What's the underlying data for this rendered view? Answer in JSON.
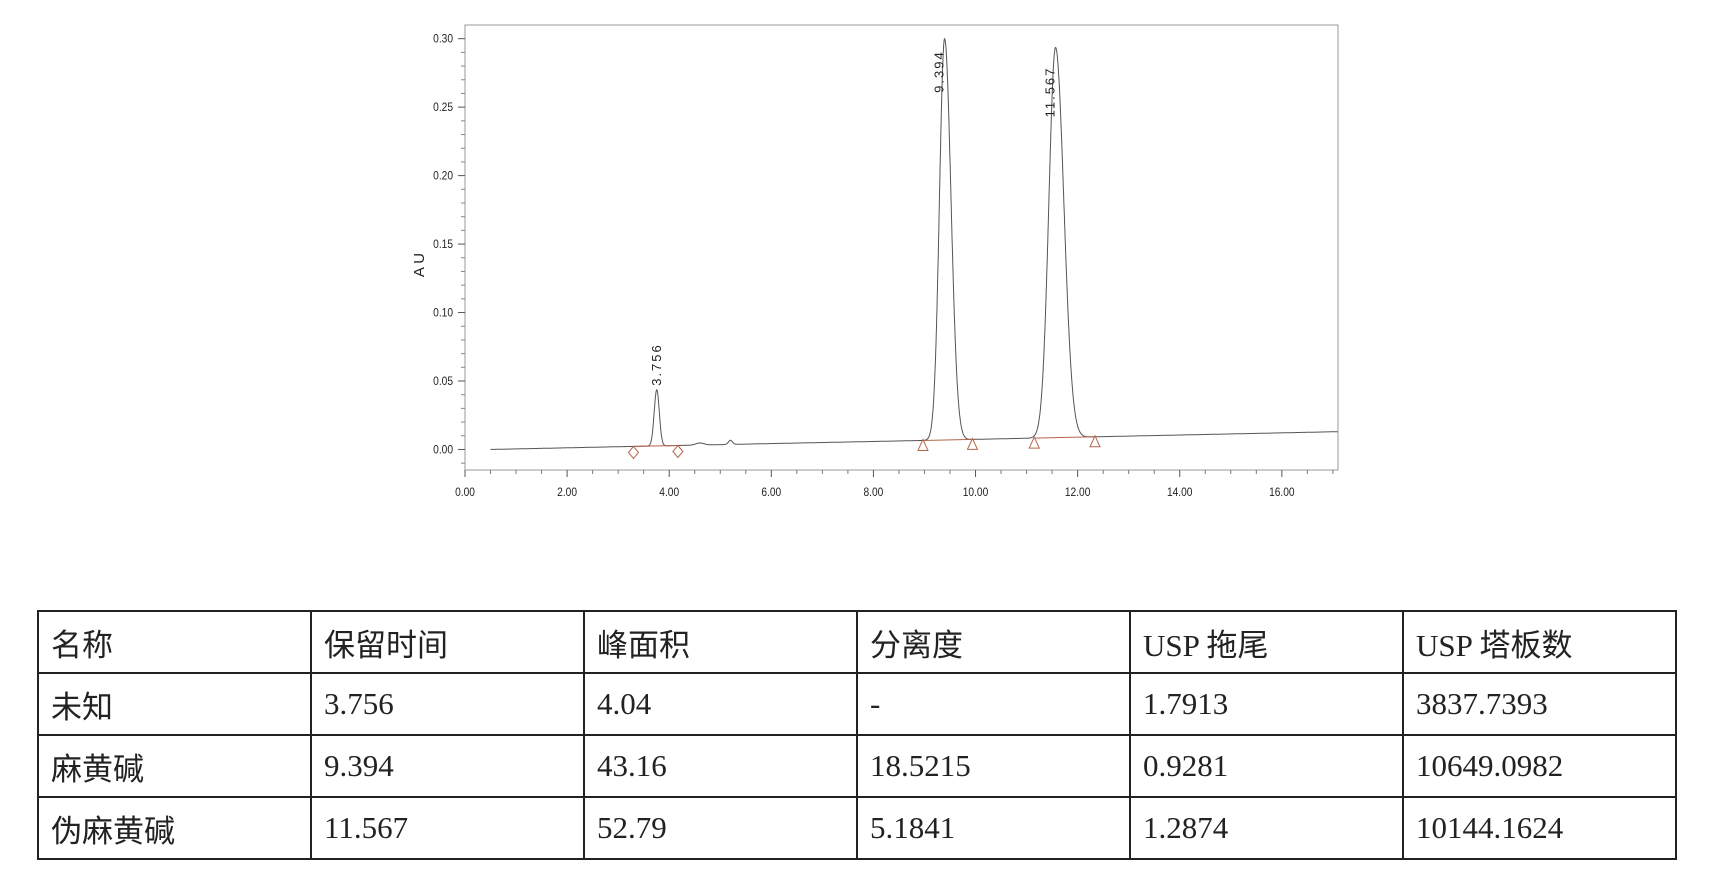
{
  "chart_data": {
    "type": "line",
    "ylabel": "A U",
    "xlabel": "",
    "xlim": [
      0,
      17.1
    ],
    "ylim": [
      -0.015,
      0.31
    ],
    "x_ticks": [
      "0.00",
      "2.00",
      "4.00",
      "6.00",
      "8.00",
      "10.00",
      "12.00",
      "14.00",
      "16.00"
    ],
    "y_ticks": [
      "0.00",
      "0.05",
      "0.10",
      "0.15",
      "0.20",
      "0.25",
      "0.30"
    ],
    "grid": false,
    "trace_color": "#555555",
    "baseline_color": "#b5654a",
    "baseline": [
      [
        0,
        0
      ],
      [
        0.5,
        0
      ],
      [
        3.0,
        0.002
      ],
      [
        9.0,
        0.0066
      ],
      [
        17.1,
        0.013
      ]
    ],
    "peaks": [
      {
        "label": "3.756",
        "rt": 3.756,
        "height": 0.041,
        "sigma": 0.05
      },
      {
        "label": "9.394",
        "rt": 9.394,
        "height": 0.293,
        "sigma": 0.1
      },
      {
        "label": "11.567",
        "rt": 11.567,
        "height": 0.285,
        "sigma": 0.13
      }
    ],
    "minor_bumps": [
      {
        "rt": 4.6,
        "height": 0.0015,
        "sigma": 0.08
      },
      {
        "rt": 5.2,
        "height": 0.003,
        "sigma": 0.04
      }
    ],
    "integration_markers": [
      {
        "shape": "diamond",
        "x": 3.3
      },
      {
        "shape": "diamond",
        "x": 4.17
      },
      {
        "shape": "triangle",
        "x": 8.97
      },
      {
        "shape": "triangle",
        "x": 9.94
      },
      {
        "shape": "triangle",
        "x": 11.15
      },
      {
        "shape": "triangle",
        "x": 12.34
      }
    ]
  },
  "table": {
    "headers": [
      "名称",
      "保留时间",
      "峰面积",
      "分离度",
      "USP 拖尾",
      "USP 塔板数"
    ],
    "rows": [
      [
        "未知",
        "3.756",
        "4.04",
        "-",
        "1.7913",
        "3837.7393"
      ],
      [
        "麻黄碱",
        "9.394",
        "43.16",
        "18.5215",
        "0.9281",
        "10649.0982"
      ],
      [
        "伪麻黄碱",
        "11.567",
        "52.79",
        "5.1841",
        "1.2874",
        "10144.1624"
      ]
    ]
  }
}
